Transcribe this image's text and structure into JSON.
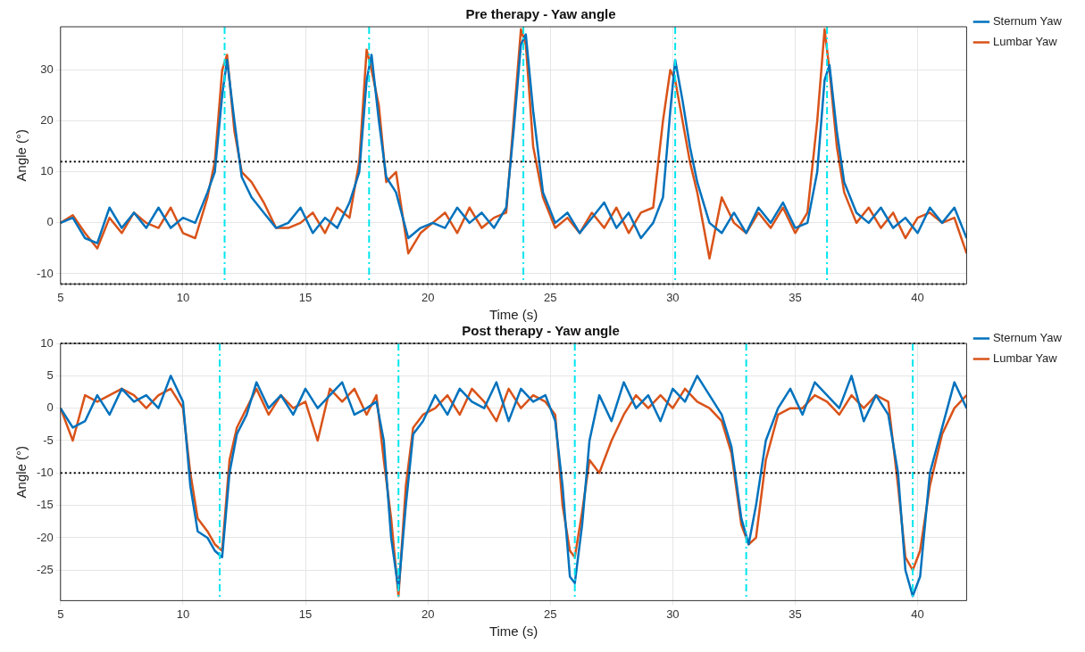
{
  "chart_data": [
    {
      "type": "line",
      "title": "Pre therapy - Yaw angle",
      "xlabel": "Time (s)",
      "ylabel": "Angle (°)",
      "xlim": [
        5,
        42
      ],
      "xticks": [
        5,
        10,
        15,
        20,
        25,
        30,
        35,
        40
      ],
      "ylim": [
        -12,
        38.5
      ],
      "yticks": [
        -10,
        0,
        10,
        20,
        30
      ],
      "grid": true,
      "legend": "right",
      "line_style": "solid",
      "marker": "none",
      "x": [
        5,
        5.5,
        6,
        6.5,
        7,
        7.5,
        8,
        8.5,
        9,
        9.5,
        10,
        10.5,
        11,
        11.3,
        11.6,
        11.8,
        12.1,
        12.4,
        12.8,
        13.3,
        13.8,
        14.3,
        14.8,
        15.3,
        15.8,
        16.3,
        16.8,
        17.2,
        17.5,
        17.7,
        18.0,
        18.3,
        18.7,
        19.2,
        19.7,
        20.2,
        20.7,
        21.2,
        21.7,
        22.2,
        22.7,
        23.2,
        23.5,
        23.8,
        24.0,
        24.3,
        24.7,
        25.2,
        25.7,
        26.2,
        26.7,
        27.2,
        27.7,
        28.2,
        28.7,
        29.2,
        29.6,
        29.9,
        30.1,
        30.4,
        30.7,
        31.0,
        31.5,
        32.0,
        32.5,
        33.0,
        33.5,
        34.0,
        34.5,
        35.0,
        35.5,
        35.9,
        36.2,
        36.4,
        36.7,
        37.0,
        37.5,
        38.0,
        38.5,
        39.0,
        39.5,
        40,
        40.5,
        41,
        41.5,
        42
      ],
      "series": [
        {
          "name": "Sternum Yaw",
          "color": "#0072bd",
          "values": [
            0,
            1,
            -3,
            -4,
            3,
            -1,
            2,
            -1,
            3,
            -1,
            1,
            0,
            6,
            10,
            25,
            32,
            20,
            9,
            5,
            2,
            -1,
            0,
            3,
            -2,
            1,
            -1,
            4,
            10,
            28,
            33,
            20,
            9,
            6,
            -3,
            -1,
            0,
            -1,
            3,
            0,
            2,
            -1,
            3,
            18,
            35,
            37,
            22,
            6,
            0,
            2,
            -2,
            1,
            4,
            -1,
            2,
            -3,
            0,
            5,
            22,
            32,
            24,
            15,
            8,
            0,
            -2,
            2,
            -2,
            3,
            0,
            4,
            -1,
            0,
            10,
            28,
            31,
            18,
            8,
            2,
            0,
            3,
            -1,
            1,
            -2,
            3,
            0,
            3,
            -3
          ]
        },
        {
          "name": "Lumbar Yaw",
          "color": "#d95319",
          "values": [
            0,
            1.5,
            -2,
            -5,
            1,
            -2,
            2,
            0,
            -1,
            3,
            -2,
            -3,
            5,
            12,
            30,
            33,
            18,
            10,
            8,
            4,
            -1,
            -1,
            0,
            2,
            -2,
            3,
            1,
            12,
            34,
            30,
            23,
            8,
            10,
            -6,
            -2,
            0,
            2,
            -2,
            3,
            -1,
            1,
            2,
            20,
            38,
            35,
            15,
            5,
            -1,
            1,
            -2,
            2,
            -1,
            3,
            -2,
            2,
            3,
            20,
            30,
            28,
            20,
            12,
            6,
            -7,
            5,
            0,
            -2,
            2,
            -1,
            3,
            -2,
            2,
            20,
            38,
            30,
            15,
            6,
            0,
            3,
            -1,
            2,
            -3,
            1,
            2,
            0,
            1,
            -6
          ]
        }
      ],
      "ref_lines": [
        {
          "axis": "y",
          "value": 12,
          "color": "#000000",
          "line_style": "dotted"
        },
        {
          "axis": "y",
          "value": -12,
          "color": "#000000",
          "line_style": "dotted"
        },
        {
          "axis": "x",
          "value": 11.7,
          "color": "#00e5ee",
          "line_style": "dashed"
        },
        {
          "axis": "x",
          "value": 17.6,
          "color": "#00e5ee",
          "line_style": "dashed"
        },
        {
          "axis": "x",
          "value": 23.9,
          "color": "#00e5ee",
          "line_style": "dashed"
        },
        {
          "axis": "x",
          "value": 30.1,
          "color": "#00e5ee",
          "line_style": "dashed"
        },
        {
          "axis": "x",
          "value": 36.3,
          "color": "#00e5ee",
          "line_style": "dashed"
        }
      ]
    },
    {
      "type": "line",
      "title": "Post therapy - Yaw angle",
      "xlabel": "Time (s)",
      "ylabel": "Angle (°)",
      "xlim": [
        5,
        42
      ],
      "xticks": [
        5,
        10,
        15,
        20,
        25,
        30,
        35,
        40
      ],
      "ylim": [
        -29.7,
        10
      ],
      "yticks": [
        -25,
        -20,
        -15,
        -10,
        -5,
        0,
        5,
        10
      ],
      "grid": true,
      "legend": "right",
      "line_style": "solid",
      "marker": "none",
      "x": [
        5,
        5.5,
        6,
        6.5,
        7,
        7.5,
        8,
        8.5,
        9,
        9.5,
        10,
        10.3,
        10.6,
        11,
        11.3,
        11.6,
        11.9,
        12.2,
        12.6,
        13,
        13.5,
        14,
        14.5,
        15,
        15.5,
        16,
        16.5,
        17,
        17.5,
        17.9,
        18.2,
        18.5,
        18.8,
        19.1,
        19.4,
        19.8,
        20.3,
        20.8,
        21.3,
        21.8,
        22.3,
        22.8,
        23.3,
        23.8,
        24.3,
        24.8,
        25.2,
        25.5,
        25.8,
        26.0,
        26.3,
        26.6,
        27,
        27.5,
        28,
        28.5,
        29,
        29.5,
        30,
        30.5,
        31,
        31.5,
        32,
        32.4,
        32.8,
        33.1,
        33.4,
        33.8,
        34.3,
        34.8,
        35.3,
        35.8,
        36.3,
        36.8,
        37.3,
        37.8,
        38.3,
        38.8,
        39.2,
        39.5,
        39.8,
        40.1,
        40.5,
        41,
        41.5,
        42
      ],
      "series": [
        {
          "name": "Sternum Yaw",
          "color": "#0072bd",
          "values": [
            0,
            -3,
            -2,
            2,
            -1,
            3,
            1,
            2,
            0,
            5,
            1,
            -12,
            -19,
            -20,
            -22,
            -23,
            -10,
            -4,
            -1,
            4,
            0,
            2,
            -1,
            3,
            0,
            2,
            4,
            -1,
            0,
            1,
            -5,
            -20,
            -28,
            -15,
            -4,
            -2,
            2,
            -1,
            3,
            1,
            0,
            4,
            -2,
            3,
            1,
            2,
            -2,
            -12,
            -26,
            -27,
            -18,
            -5,
            2,
            -2,
            4,
            0,
            2,
            -2,
            3,
            1,
            5,
            2,
            -1,
            -6,
            -17,
            -21,
            -15,
            -5,
            0,
            3,
            -1,
            4,
            2,
            0,
            5,
            -2,
            2,
            -1,
            -10,
            -25,
            -29,
            -26,
            -10,
            -3,
            4,
            0
          ]
        },
        {
          "name": "Lumbar Yaw",
          "color": "#d95319",
          "values": [
            0,
            -5,
            2,
            1,
            2,
            3,
            2,
            0,
            2,
            3,
            0,
            -10,
            -17,
            -19,
            -21,
            -22,
            -8,
            -3,
            0,
            3,
            -1,
            2,
            0,
            1,
            -5,
            3,
            1,
            3,
            -1,
            2,
            -8,
            -17,
            -29,
            -12,
            -3,
            -1,
            0,
            2,
            -1,
            3,
            1,
            -2,
            3,
            0,
            2,
            1,
            -1,
            -15,
            -22,
            -23,
            -16,
            -8,
            -10,
            -5,
            -1,
            2,
            0,
            2,
            0,
            3,
            1,
            0,
            -2,
            -7,
            -18,
            -21,
            -20,
            -8,
            -1,
            0,
            0,
            2,
            1,
            -1,
            2,
            0,
            2,
            1,
            -12,
            -23,
            -25,
            -22,
            -12,
            -4,
            0,
            2
          ]
        }
      ],
      "ref_lines": [
        {
          "axis": "y",
          "value": 10,
          "color": "#000000",
          "line_style": "dotted"
        },
        {
          "axis": "y",
          "value": -10,
          "color": "#000000",
          "line_style": "dotted"
        },
        {
          "axis": "x",
          "value": 11.5,
          "color": "#00e5ee",
          "line_style": "dashed"
        },
        {
          "axis": "x",
          "value": 18.8,
          "color": "#00e5ee",
          "line_style": "dashed"
        },
        {
          "axis": "x",
          "value": 26.0,
          "color": "#00e5ee",
          "line_style": "dashed"
        },
        {
          "axis": "x",
          "value": 33.0,
          "color": "#00e5ee",
          "line_style": "dashed"
        },
        {
          "axis": "x",
          "value": 39.8,
          "color": "#00e5ee",
          "line_style": "dashed"
        }
      ]
    }
  ]
}
